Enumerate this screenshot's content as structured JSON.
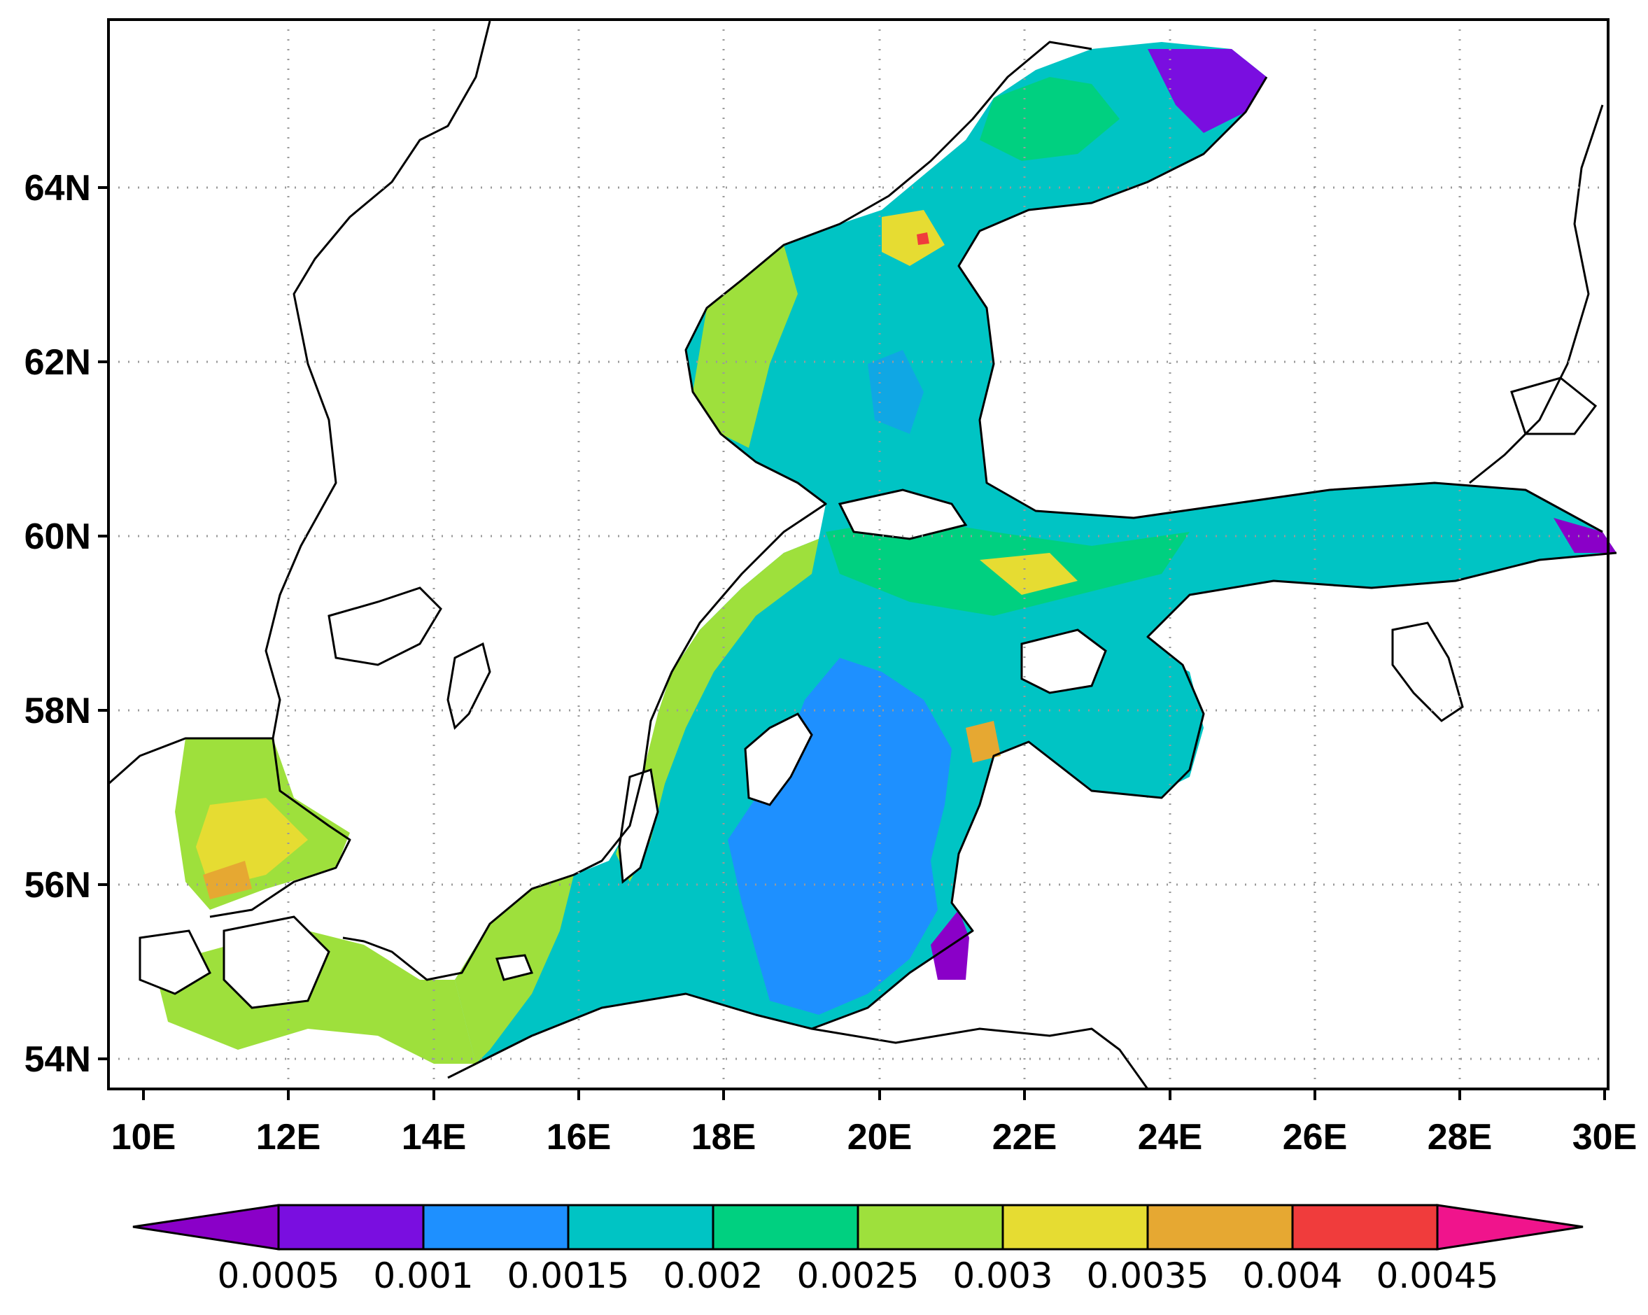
{
  "map": {
    "lat_labels": [
      "64N",
      "62N",
      "60N",
      "58N",
      "56N",
      "54N"
    ],
    "lat_values": [
      64,
      62,
      60,
      58,
      56,
      54
    ],
    "lon_labels": [
      "10E",
      "12E",
      "14E",
      "16E",
      "18E",
      "20E",
      "22E",
      "24E",
      "26E",
      "28E",
      "30E"
    ],
    "lon_values": [
      10,
      12,
      14,
      16,
      18,
      20,
      22,
      24,
      26,
      28,
      30
    ],
    "grid": true,
    "grid_style": "dotted"
  },
  "colorbar": {
    "labels": [
      "0.0005",
      "0.001",
      "0.0015",
      "0.002",
      "0.0025",
      "0.003",
      "0.0035",
      "0.004",
      "0.0045"
    ],
    "colors": [
      "#8a00c8",
      "#7a0ee0",
      "#1e90ff",
      "#00c4c4",
      "#00d080",
      "#9ee03c",
      "#e6dc32",
      "#e6a832",
      "#f03c3c",
      "#f0148c"
    ],
    "extend": "both"
  }
}
